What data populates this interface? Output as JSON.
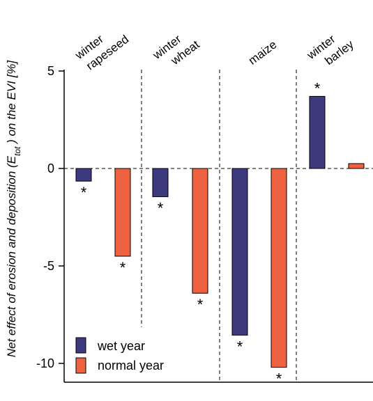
{
  "chart_data": {
    "type": "bar",
    "ylabel": {
      "main": "Net effect of erosion and deposition",
      "symbol": "E",
      "subscript": "tot",
      "suffix": "on the EVI [%]"
    },
    "ylim": [
      -11,
      5.5
    ],
    "yticks": [
      5,
      0,
      -5,
      -10
    ],
    "categories": [
      {
        "line1": "winter",
        "line2": "rapeseed"
      },
      {
        "line1": "winter",
        "line2": "wheat"
      },
      {
        "line1": "",
        "line2": "maize"
      },
      {
        "line1": "winter",
        "line2": "barley"
      }
    ],
    "series": [
      {
        "name": "wet year",
        "color": "#3d3a80",
        "values": [
          -0.65,
          -1.45,
          -8.55,
          3.7
        ],
        "significant": [
          true,
          true,
          true,
          true
        ]
      },
      {
        "name": "normal year",
        "color": "#ef6241",
        "values": [
          -4.5,
          -6.4,
          -10.2,
          0.25
        ],
        "significant": [
          true,
          true,
          true,
          false
        ]
      }
    ],
    "significance_marker": "*",
    "zero_line": "dashed",
    "separators": "dashed",
    "legend_position": "bottom-left"
  }
}
